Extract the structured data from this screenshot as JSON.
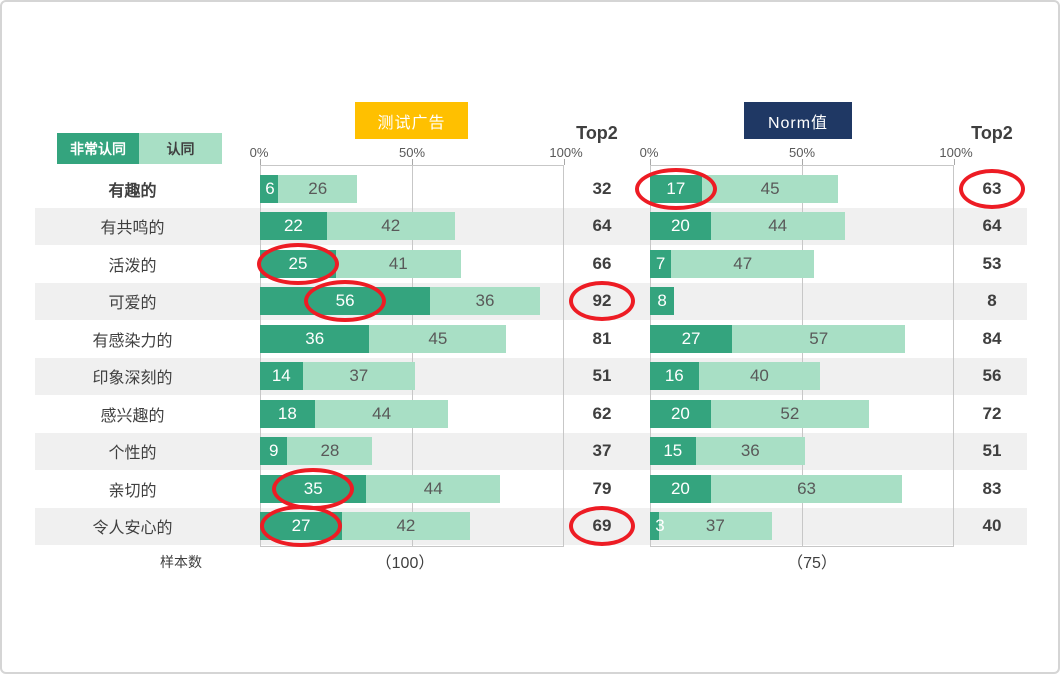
{
  "legend": {
    "strongly_agree": "非常认同",
    "agree": "认同"
  },
  "charts_ui": [
    {
      "title": "测试广告",
      "top2_label": "Top2",
      "axis": [
        "0%",
        "50%",
        "100%"
      ],
      "sample": "（100）"
    },
    {
      "title": "Norm值",
      "top2_label": "Top2",
      "axis": [
        "0%",
        "50%",
        "100%"
      ],
      "sample": "（75）"
    }
  ],
  "sample_label": "样本数",
  "colors": {
    "strongly_agree_green": "#34A47E",
    "agree_light_green": "#A8DFC5",
    "test_ad_header_bg": "#FFC000",
    "norm_header_bg": "#1F3864",
    "highlight_circle_red": "#ED1C24",
    "row_stripe": "#F0F0F0"
  },
  "chart_data": [
    {
      "type": "bar",
      "orientation": "horizontal",
      "stacked": true,
      "title": "测试广告",
      "categories": [
        "有趣的",
        "有共鸣的",
        "活泼的",
        "可爱的",
        "有感染力的",
        "印象深刻的",
        "感兴趣的",
        "个性的",
        "亲切的",
        "令人安心的"
      ],
      "series": [
        {
          "name": "非常认同",
          "values": [
            6,
            22,
            25,
            56,
            36,
            14,
            18,
            9,
            35,
            27
          ]
        },
        {
          "name": "认同",
          "values": [
            26,
            42,
            41,
            36,
            45,
            37,
            44,
            28,
            44,
            42
          ]
        }
      ],
      "top2": [
        32,
        64,
        66,
        92,
        81,
        51,
        62,
        37,
        79,
        69
      ],
      "xlim": [
        0,
        100
      ],
      "tick_labels": [
        "0%",
        "50%",
        "100%"
      ],
      "sample_size": "（100）"
    },
    {
      "type": "bar",
      "orientation": "horizontal",
      "stacked": true,
      "title": "Norm值",
      "categories": [
        "有趣的",
        "有共鸣的",
        "活泼的",
        "可爱的",
        "有感染力的",
        "印象深刻的",
        "感兴趣的",
        "个性的",
        "亲切的",
        "令人安心的"
      ],
      "series": [
        {
          "name": "非常认同",
          "values": [
            17,
            20,
            7,
            8,
            27,
            16,
            20,
            15,
            20,
            3
          ]
        },
        {
          "name": "认同",
          "values": [
            45,
            44,
            47,
            0,
            57,
            40,
            52,
            36,
            63,
            37
          ]
        }
      ],
      "top2": [
        63,
        64,
        53,
        8,
        84,
        56,
        72,
        51,
        83,
        40
      ],
      "xlim": [
        0,
        100
      ],
      "tick_labels": [
        "0%",
        "50%",
        "100%"
      ],
      "sample_size": "（75）"
    }
  ],
  "annotations": {
    "circles": [
      {
        "chart": 0,
        "row": 2,
        "target": "segment1"
      },
      {
        "chart": 0,
        "row": 3,
        "target": "segment1"
      },
      {
        "chart": 0,
        "row": 8,
        "target": "segment1"
      },
      {
        "chart": 0,
        "row": 9,
        "target": "segment1"
      },
      {
        "chart": 0,
        "row": 3,
        "target": "top2"
      },
      {
        "chart": 0,
        "row": 9,
        "target": "top2"
      },
      {
        "chart": 1,
        "row": 0,
        "target": "segment1"
      },
      {
        "chart": 1,
        "row": 0,
        "target": "top2"
      }
    ]
  }
}
